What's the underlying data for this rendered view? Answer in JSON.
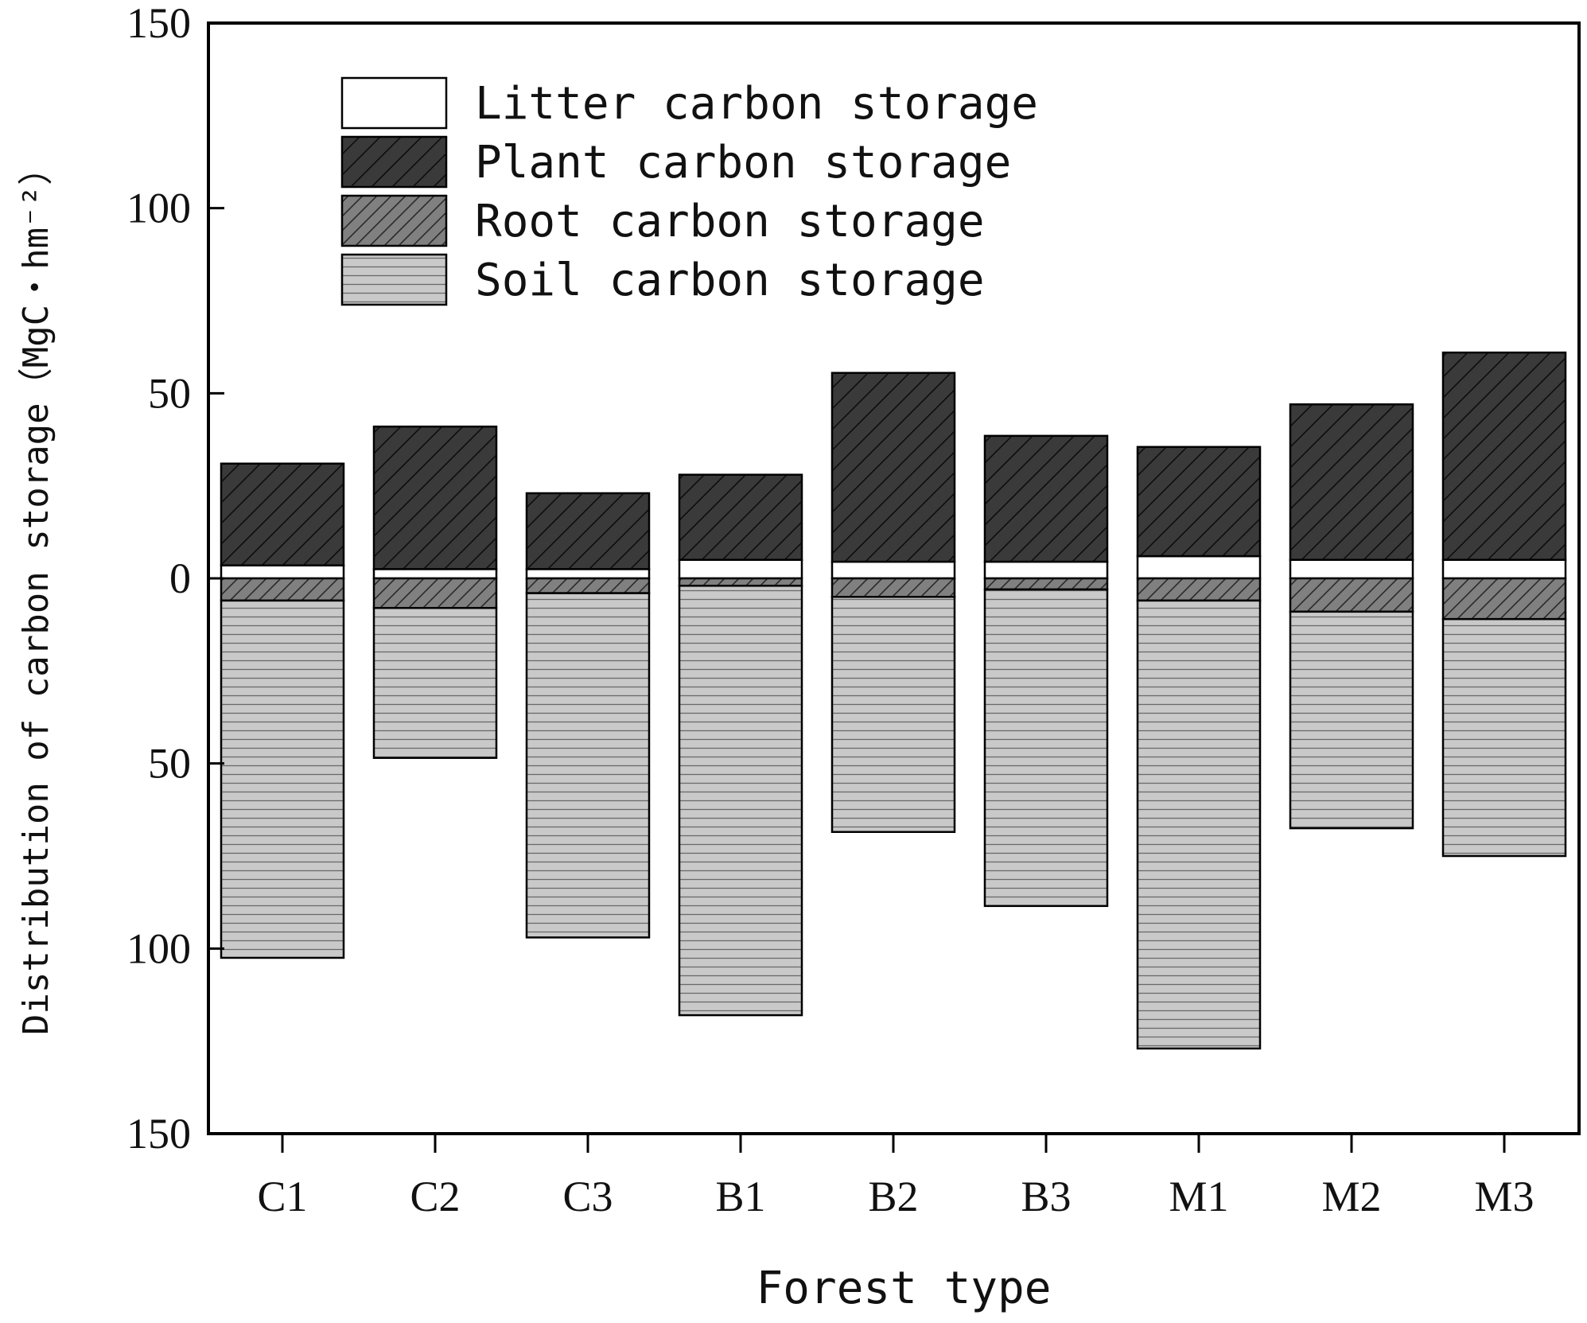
{
  "chart_data": {
    "type": "bar",
    "stacked": true,
    "diverging": true,
    "categories": [
      "C1",
      "C2",
      "C3",
      "B1",
      "B2",
      "B3",
      "M1",
      "M2",
      "M3"
    ],
    "xlabel": "Forest type",
    "ylabel": "Distribution of carbon storage（MgC・hm⁻²）",
    "ylim": [
      -150,
      150
    ],
    "ytick_values": [
      150,
      100,
      50,
      0,
      -50,
      -100,
      -150
    ],
    "ytick_labels": [
      "150",
      "100",
      "50",
      "0",
      "50",
      "100",
      "150"
    ],
    "legend_position": "top-left",
    "series": [
      {
        "name": "Litter carbon storage",
        "direction": "up",
        "pattern": "white",
        "color": "#ffffff",
        "values": [
          3.5,
          2.5,
          2.5,
          5.0,
          4.5,
          4.5,
          6.0,
          5.0,
          5.0
        ]
      },
      {
        "name": "Plant carbon storage",
        "direction": "up",
        "pattern": "dark-diagonal",
        "color": "#3a3a3a",
        "values": [
          27.5,
          38.5,
          20.5,
          23.0,
          51.0,
          34.0,
          29.5,
          42.0,
          56.0
        ]
      },
      {
        "name": "Root carbon storage",
        "direction": "down",
        "pattern": "gray-diagonal",
        "color": "#7f7f7f",
        "values": [
          6.0,
          8.0,
          4.0,
          2.0,
          5.0,
          3.0,
          6.0,
          9.0,
          11.0
        ]
      },
      {
        "name": "Soil carbon storage",
        "direction": "down",
        "pattern": "light-horizontal",
        "color": "#c9c9c9",
        "values": [
          96.5,
          40.5,
          93.0,
          116.0,
          63.5,
          85.5,
          121.0,
          58.5,
          64.0
        ]
      }
    ]
  }
}
